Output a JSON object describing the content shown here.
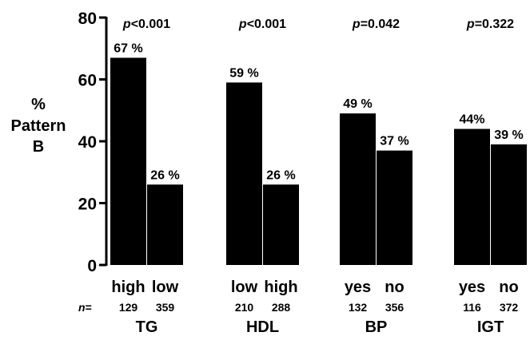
{
  "chart_data": {
    "type": "bar",
    "ylabel_lines": [
      "%",
      "Pattern",
      "B"
    ],
    "ylim": [
      0,
      80
    ],
    "yticks": [
      0,
      20,
      40,
      60,
      80
    ],
    "grid": false,
    "n_prefix": "n",
    "n_prefix_suffix": "=",
    "groups": [
      {
        "name": "TG",
        "p_prefix": "p",
        "p_value": "<0.001",
        "bars": [
          {
            "category": "high",
            "value": 67,
            "label": "67 %",
            "n": "129"
          },
          {
            "category": "low",
            "value": 26,
            "label": "26 %",
            "n": "359"
          }
        ]
      },
      {
        "name": "HDL",
        "p_prefix": "p",
        "p_value": "<0.001",
        "bars": [
          {
            "category": "low",
            "value": 59,
            "label": "59 %",
            "n": "210"
          },
          {
            "category": "high",
            "value": 26,
            "label": "26 %",
            "n": "288"
          }
        ]
      },
      {
        "name": "BP",
        "p_prefix": "p",
        "p_value": "=0.042",
        "bars": [
          {
            "category": "yes",
            "value": 49,
            "label": "49 %",
            "n": "132"
          },
          {
            "category": "no",
            "value": 37,
            "label": "37 %",
            "n": "356"
          }
        ]
      },
      {
        "name": "IGT",
        "p_prefix": "p",
        "p_value": "=0.322",
        "bars": [
          {
            "category": "yes",
            "value": 44,
            "label": "44%",
            "n": "116"
          },
          {
            "category": "no",
            "value": 39,
            "label": "39 %",
            "n": "372"
          }
        ]
      }
    ]
  },
  "colors": {
    "bar": "#000000",
    "axis": "#000000",
    "background": "#ffffff"
  }
}
